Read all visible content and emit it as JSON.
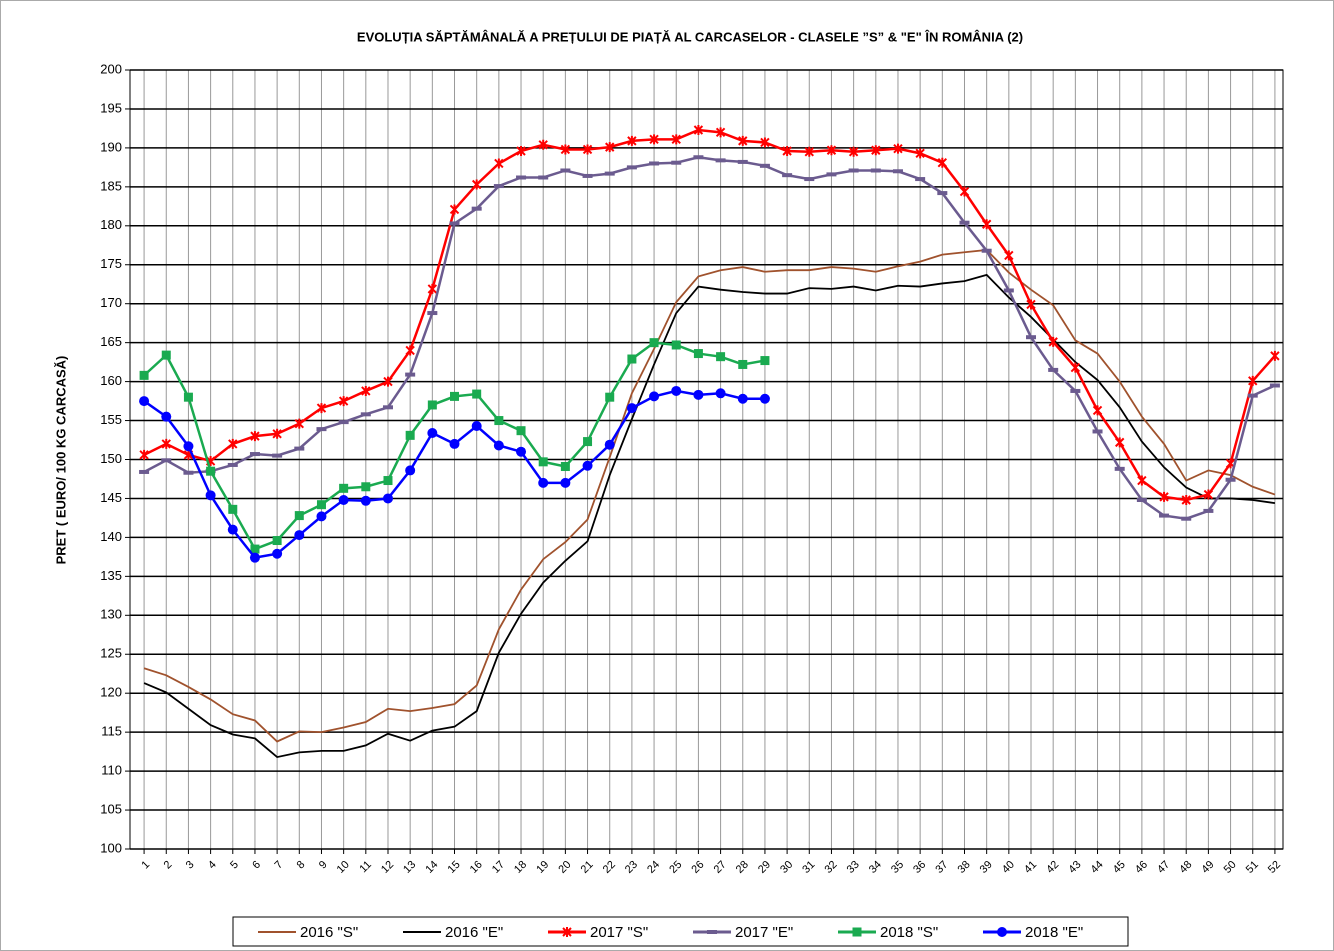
{
  "chart_data": {
    "type": "line",
    "title": "EVOLUȚIA SĂPTĂMÂNALĂ A PREȚULUI DE PIAȚĂ  AL CARCASELOR  - CLASELE ”S” & \"E\"  ÎN ROMÂNIA (2)",
    "y_label": "PRET ( EURO/ 100 KG CARCASĂ)",
    "categories": [
      "1",
      "2",
      "3",
      "4",
      "5",
      "6",
      "7",
      "8",
      "9",
      "10",
      "11",
      "12",
      "13",
      "14",
      "15",
      "16",
      "17",
      "18",
      "19",
      "20",
      "21",
      "22",
      "23",
      "24",
      "25",
      "26",
      "27",
      "28",
      "29",
      "30",
      "31",
      "32",
      "33",
      "34",
      "35",
      "36",
      "37",
      "38",
      "39",
      "40",
      "41",
      "42",
      "43",
      "44",
      "45",
      "46",
      "47",
      "48",
      "49",
      "50",
      "51",
      "52"
    ],
    "ylim": [
      100,
      200
    ],
    "yticks": [
      100,
      105,
      110,
      115,
      120,
      125,
      130,
      135,
      140,
      145,
      150,
      155,
      160,
      165,
      170,
      175,
      180,
      185,
      190,
      195,
      200
    ],
    "grid": true,
    "legend": "bottom",
    "series": [
      {
        "name": "2016 \"S\"",
        "color": "#a0522d",
        "marker": null,
        "values": [
          123.2,
          122.3,
          120.8,
          119.2,
          117.3,
          116.5,
          113.8,
          115.1,
          115.0,
          115.6,
          116.3,
          118.0,
          117.7,
          118.1,
          118.6,
          121.0,
          128.2,
          133.3,
          137.2,
          139.4,
          142.3,
          150.3,
          158.5,
          164.2,
          170.2,
          173.5,
          174.3,
          174.7,
          174.1,
          174.3,
          174.3,
          174.7,
          174.5,
          174.1,
          174.8,
          175.4,
          176.3,
          176.6,
          176.9,
          174.0,
          171.8,
          169.8,
          165.3,
          163.6,
          160.0,
          155.5,
          152.0,
          147.3,
          148.6,
          148.0,
          146.5,
          145.5
        ]
      },
      {
        "name": "2016 \"E\"",
        "color": "#000000",
        "marker": null,
        "values": [
          121.3,
          120.1,
          118.0,
          115.9,
          114.7,
          114.2,
          111.8,
          112.4,
          112.6,
          112.6,
          113.3,
          114.8,
          113.9,
          115.2,
          115.7,
          117.7,
          125.2,
          130.2,
          134.2,
          137.0,
          139.5,
          148.0,
          155.2,
          162.2,
          168.8,
          172.2,
          171.8,
          171.5,
          171.3,
          171.3,
          172.0,
          171.9,
          172.2,
          171.7,
          172.3,
          172.2,
          172.6,
          172.9,
          173.7,
          170.8,
          168.3,
          165.4,
          162.5,
          160.2,
          156.7,
          152.3,
          149.0,
          146.4,
          145.0,
          145.0,
          144.8,
          144.4
        ]
      },
      {
        "name": "2017 \"S\"",
        "color": "#ff0000",
        "marker": "x",
        "values": [
          150.6,
          152.0,
          150.6,
          149.8,
          152.0,
          153.0,
          153.3,
          154.6,
          156.6,
          157.5,
          158.8,
          160.0,
          164.0,
          171.9,
          182.1,
          185.3,
          188.0,
          189.6,
          190.4,
          189.8,
          189.8,
          190.1,
          190.9,
          191.1,
          191.1,
          192.3,
          192.0,
          190.9,
          190.7,
          189.6,
          189.5,
          189.7,
          189.5,
          189.7,
          189.9,
          189.3,
          188.1,
          184.4,
          180.2,
          176.2,
          169.9,
          165.1,
          161.8,
          156.3,
          152.2,
          147.3,
          145.2,
          144.8,
          145.5,
          149.5,
          160.1,
          163.3
        ]
      },
      {
        "name": "2017 \"E\"",
        "color": "#6b5b8f",
        "marker": "dash",
        "values": [
          148.4,
          149.9,
          148.3,
          148.5,
          149.3,
          150.7,
          150.5,
          151.4,
          153.9,
          154.8,
          155.8,
          156.7,
          160.9,
          168.8,
          180.3,
          182.2,
          185.1,
          186.2,
          186.2,
          187.1,
          186.4,
          186.7,
          187.5,
          188.0,
          188.1,
          188.8,
          188.4,
          188.2,
          187.7,
          186.5,
          186.0,
          186.6,
          187.1,
          187.1,
          187.0,
          186.0,
          184.2,
          180.4,
          176.8,
          171.7,
          165.7,
          161.5,
          158.8,
          153.6,
          148.8,
          144.8,
          142.8,
          142.4,
          143.4,
          147.4,
          158.2,
          159.5
        ]
      },
      {
        "name": "2018 \"S\"",
        "color": "#1aaa50",
        "marker": "square",
        "values": [
          160.8,
          163.4,
          158.0,
          148.5,
          143.6,
          138.5,
          139.6,
          142.8,
          144.2,
          146.3,
          146.5,
          147.3,
          153.1,
          157.0,
          158.1,
          158.4,
          155.0,
          153.7,
          149.7,
          149.1,
          152.3,
          158.0,
          162.9,
          165.0,
          164.7,
          163.6,
          163.2,
          162.2,
          162.7,
          null,
          null,
          null,
          null,
          null,
          null,
          null,
          null,
          null,
          null,
          null,
          null,
          null,
          null,
          null,
          null,
          null,
          null,
          null,
          null,
          null,
          null,
          null
        ]
      },
      {
        "name": "2018 \"E\"",
        "color": "#0000ff",
        "marker": "circle",
        "values": [
          157.5,
          155.5,
          151.7,
          145.4,
          141.0,
          137.4,
          137.9,
          140.3,
          142.7,
          144.8,
          144.7,
          145.0,
          148.6,
          153.4,
          152.0,
          154.3,
          151.8,
          151.0,
          147.0,
          147.0,
          149.2,
          151.9,
          156.6,
          158.1,
          158.8,
          158.3,
          158.5,
          157.8,
          157.8,
          null,
          null,
          null,
          null,
          null,
          null,
          null,
          null,
          null,
          null,
          null,
          null,
          null,
          null,
          null,
          null,
          null,
          null,
          null,
          null,
          null,
          null,
          null
        ]
      }
    ]
  }
}
